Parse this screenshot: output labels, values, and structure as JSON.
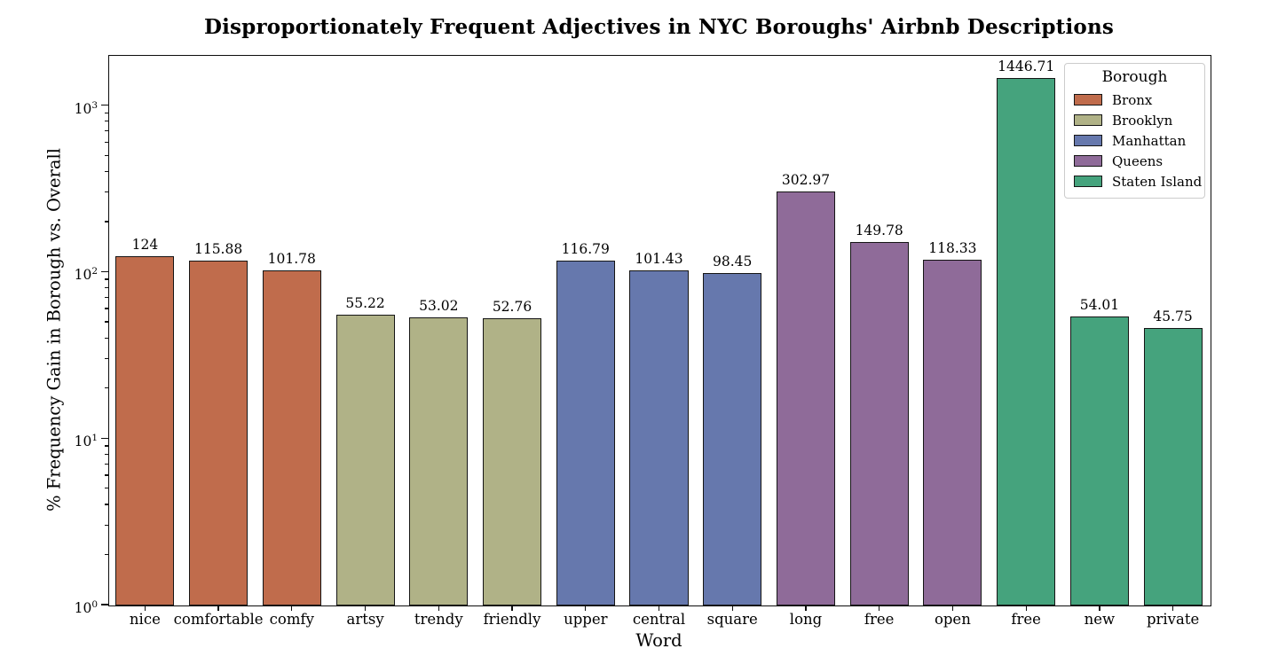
{
  "title": "Disproportionately Frequent Adjectives in NYC Boroughs' Airbnb Descriptions",
  "chart_data": {
    "type": "bar",
    "title": "Disproportionately Frequent Adjectives in NYC Boroughs' Airbnb Descriptions",
    "xlabel": "Word",
    "ylabel": "% Frequency Gain in Borough vs. Overall",
    "yscale": "log",
    "ylim": [
      1,
      2000
    ],
    "grid": false,
    "y_tick_exponents": [
      0,
      1,
      2,
      3
    ],
    "categories": [
      "nice",
      "comfortable",
      "comfy",
      "artsy",
      "trendy",
      "friendly",
      "upper",
      "central",
      "square",
      "long",
      "free",
      "open",
      "free",
      "new",
      "private"
    ],
    "values": [
      124,
      115.88,
      101.78,
      55.22,
      53.02,
      52.76,
      116.79,
      101.43,
      98.45,
      302.97,
      149.78,
      118.33,
      1446.71,
      54.01,
      45.75
    ],
    "value_labels": [
      "124",
      "115.88",
      "101.78",
      "55.22",
      "53.02",
      "52.76",
      "116.79",
      "101.43",
      "98.45",
      "302.97",
      "149.78",
      "118.33",
      "1446.71",
      "54.01",
      "45.75"
    ],
    "bar_groups": [
      "Bronx",
      "Bronx",
      "Bronx",
      "Brooklyn",
      "Brooklyn",
      "Brooklyn",
      "Manhattan",
      "Manhattan",
      "Manhattan",
      "Queens",
      "Queens",
      "Queens",
      "Staten Island",
      "Staten Island",
      "Staten Island"
    ],
    "colors": {
      "Bronx": "#c06c4c",
      "Brooklyn": "#b0b287",
      "Manhattan": "#6678ad",
      "Queens": "#8f6b99",
      "Staten Island": "#45a37d"
    },
    "bar_edge_color": "#151515",
    "legend": {
      "position": "upper right",
      "title": "Borough",
      "entries": [
        {
          "label": "Bronx",
          "color": "#c06c4c"
        },
        {
          "label": "Brooklyn",
          "color": "#b0b287"
        },
        {
          "label": "Manhattan",
          "color": "#6678ad"
        },
        {
          "label": "Queens",
          "color": "#8f6b99"
        },
        {
          "label": "Staten Island",
          "color": "#45a37d"
        }
      ]
    }
  }
}
